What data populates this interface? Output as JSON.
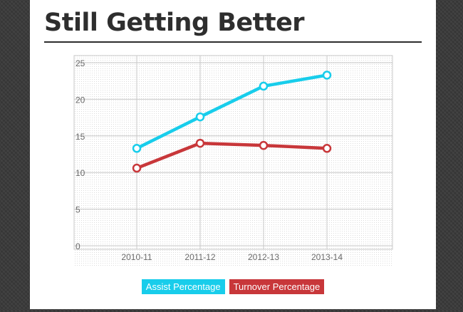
{
  "header": {
    "title": "Still Getting Better"
  },
  "chart_data": {
    "type": "line",
    "title": "",
    "xlabel": "",
    "ylabel": "",
    "categories": [
      "2010-11",
      "2011-12",
      "2012-13",
      "2013-14"
    ],
    "y_ticks": [
      "0",
      "5",
      "10",
      "15",
      "20",
      "25"
    ],
    "ylim": [
      0,
      25
    ],
    "grid": true,
    "legend_position": "bottom",
    "series": [
      {
        "name": "Assist Percentage",
        "color": "#18cdeb",
        "values": [
          13.3,
          17.6,
          21.8,
          23.3
        ]
      },
      {
        "name": "Turnover Percentage",
        "color": "#c8373a",
        "values": [
          10.6,
          14.0,
          13.7,
          13.3
        ]
      }
    ]
  }
}
